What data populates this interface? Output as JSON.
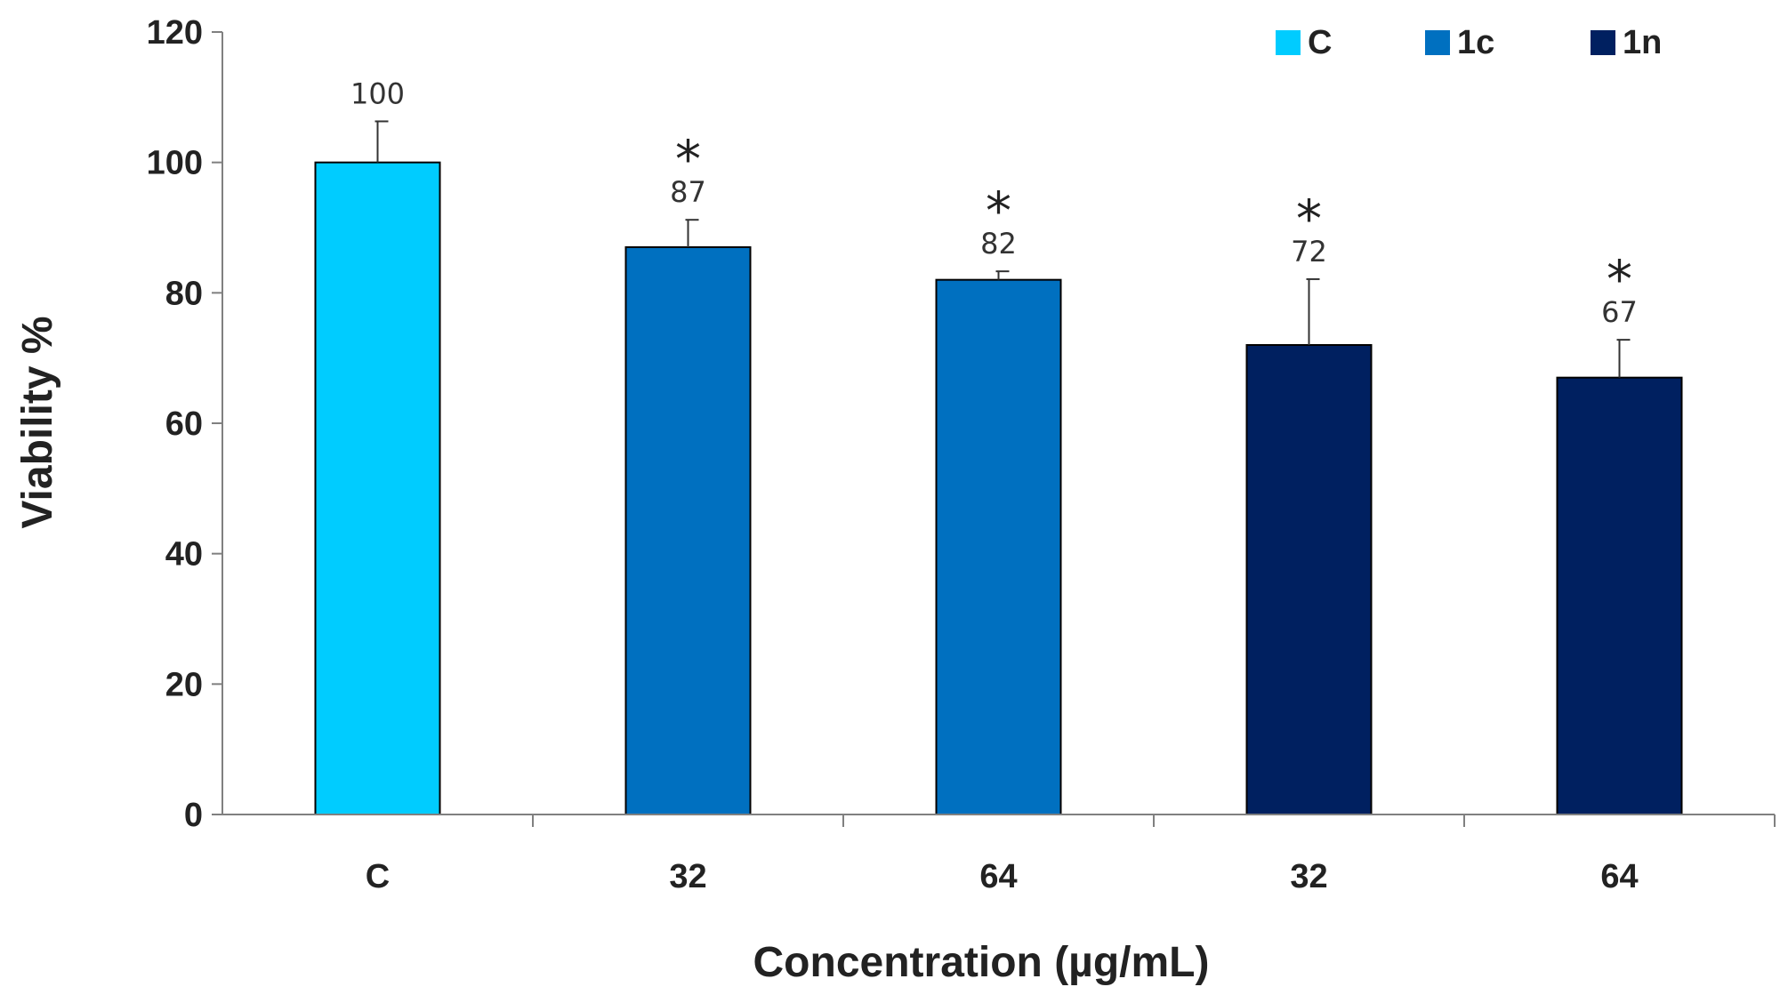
{
  "chart_data": {
    "type": "bar",
    "title": "",
    "xlabel": "Concentration (µg/mL)",
    "ylabel": "Viability %",
    "ylim": [
      0,
      120
    ],
    "yticks": [
      "0",
      "20",
      "40",
      "60",
      "80",
      "100",
      "120"
    ],
    "grid": false,
    "legend_position": "top-right",
    "legend": [
      {
        "label": "C",
        "color": "#00CCFF"
      },
      {
        "label": "1c",
        "color": "#0070C0"
      },
      {
        "label": "1n",
        "color": "#002060"
      }
    ],
    "bars": [
      {
        "category": "C",
        "series": "C",
        "value": 100,
        "error": 6.3,
        "label": "100",
        "significance": ""
      },
      {
        "category": "32",
        "series": "1c",
        "value": 87,
        "error": 4.2,
        "label": "87",
        "significance": "*"
      },
      {
        "category": "64",
        "series": "1c",
        "value": 82,
        "error": 1.3,
        "label": "82",
        "significance": "*"
      },
      {
        "category": "32",
        "series": "1n",
        "value": 72,
        "error": 10.1,
        "label": "72",
        "significance": "*"
      },
      {
        "category": "64",
        "series": "1n",
        "value": 67,
        "error": 5.8,
        "label": "67",
        "significance": "*"
      }
    ]
  }
}
